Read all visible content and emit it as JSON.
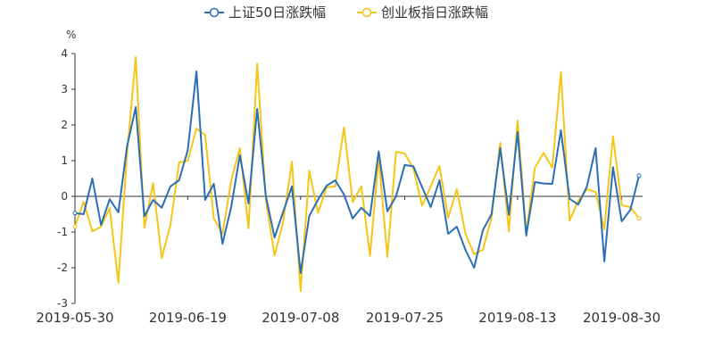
{
  "chart_data": {
    "type": "line",
    "ylabel": "%",
    "ylim": [
      -3,
      4
    ],
    "yticks": [
      -3,
      -2,
      -1,
      0,
      1,
      2,
      3,
      4
    ],
    "x_tick_labels": [
      "2019-05-30",
      "2019-06-19",
      "2019-07-08",
      "2019-07-25",
      "2019-08-13",
      "2019-08-30"
    ],
    "x_tick_indices": [
      0,
      13,
      26,
      38,
      51,
      63
    ],
    "legend_position": "top-center",
    "grid": false,
    "series": [
      {
        "name": "上证50日涨跌幅",
        "color": "#2b6eb5",
        "values": [
          -0.47,
          -0.5,
          0.5,
          -0.8,
          -0.08,
          -0.45,
          1.4,
          2.5,
          -0.56,
          -0.1,
          -0.32,
          0.28,
          0.45,
          1.3,
          3.5,
          -0.1,
          0.35,
          -1.33,
          -0.3,
          1.15,
          -0.2,
          2.45,
          0.0,
          -1.15,
          -0.43,
          0.28,
          -2.15,
          -0.55,
          -0.1,
          0.3,
          0.45,
          0.05,
          -0.62,
          -0.32,
          -0.55,
          1.26,
          -0.42,
          0.0,
          0.88,
          0.84,
          0.26,
          -0.3,
          0.45,
          -1.05,
          -0.85,
          -1.5,
          -2.0,
          -0.95,
          -0.5,
          1.35,
          -0.52,
          1.8,
          -1.1,
          0.4,
          0.36,
          0.35,
          1.85,
          -0.07,
          -0.23,
          0.28,
          1.35,
          -1.82,
          0.82,
          -0.7,
          -0.38,
          0.58
        ]
      },
      {
        "name": "创业板指日涨跌幅",
        "color": "#f5c518",
        "values": [
          -0.85,
          -0.15,
          -0.98,
          -0.85,
          -0.33,
          -2.42,
          1.2,
          3.9,
          -0.88,
          0.37,
          -1.73,
          -0.8,
          0.95,
          1.0,
          1.9,
          1.72,
          -0.62,
          -1.05,
          0.43,
          1.35,
          -0.9,
          3.72,
          -0.12,
          -1.66,
          -0.7,
          0.97,
          -2.65,
          0.72,
          -0.46,
          0.25,
          0.28,
          1.93,
          -0.16,
          0.28,
          -1.67,
          1.1,
          -1.7,
          1.25,
          1.2,
          0.78,
          -0.26,
          0.28,
          0.85,
          -0.6,
          0.2,
          -1.05,
          -1.62,
          -1.5,
          -0.6,
          1.5,
          -0.98,
          2.12,
          -1.02,
          0.8,
          1.22,
          0.8,
          3.48,
          -0.68,
          -0.12,
          0.2,
          0.12,
          -0.92,
          1.68,
          -0.25,
          -0.3,
          -0.62
        ]
      }
    ]
  }
}
